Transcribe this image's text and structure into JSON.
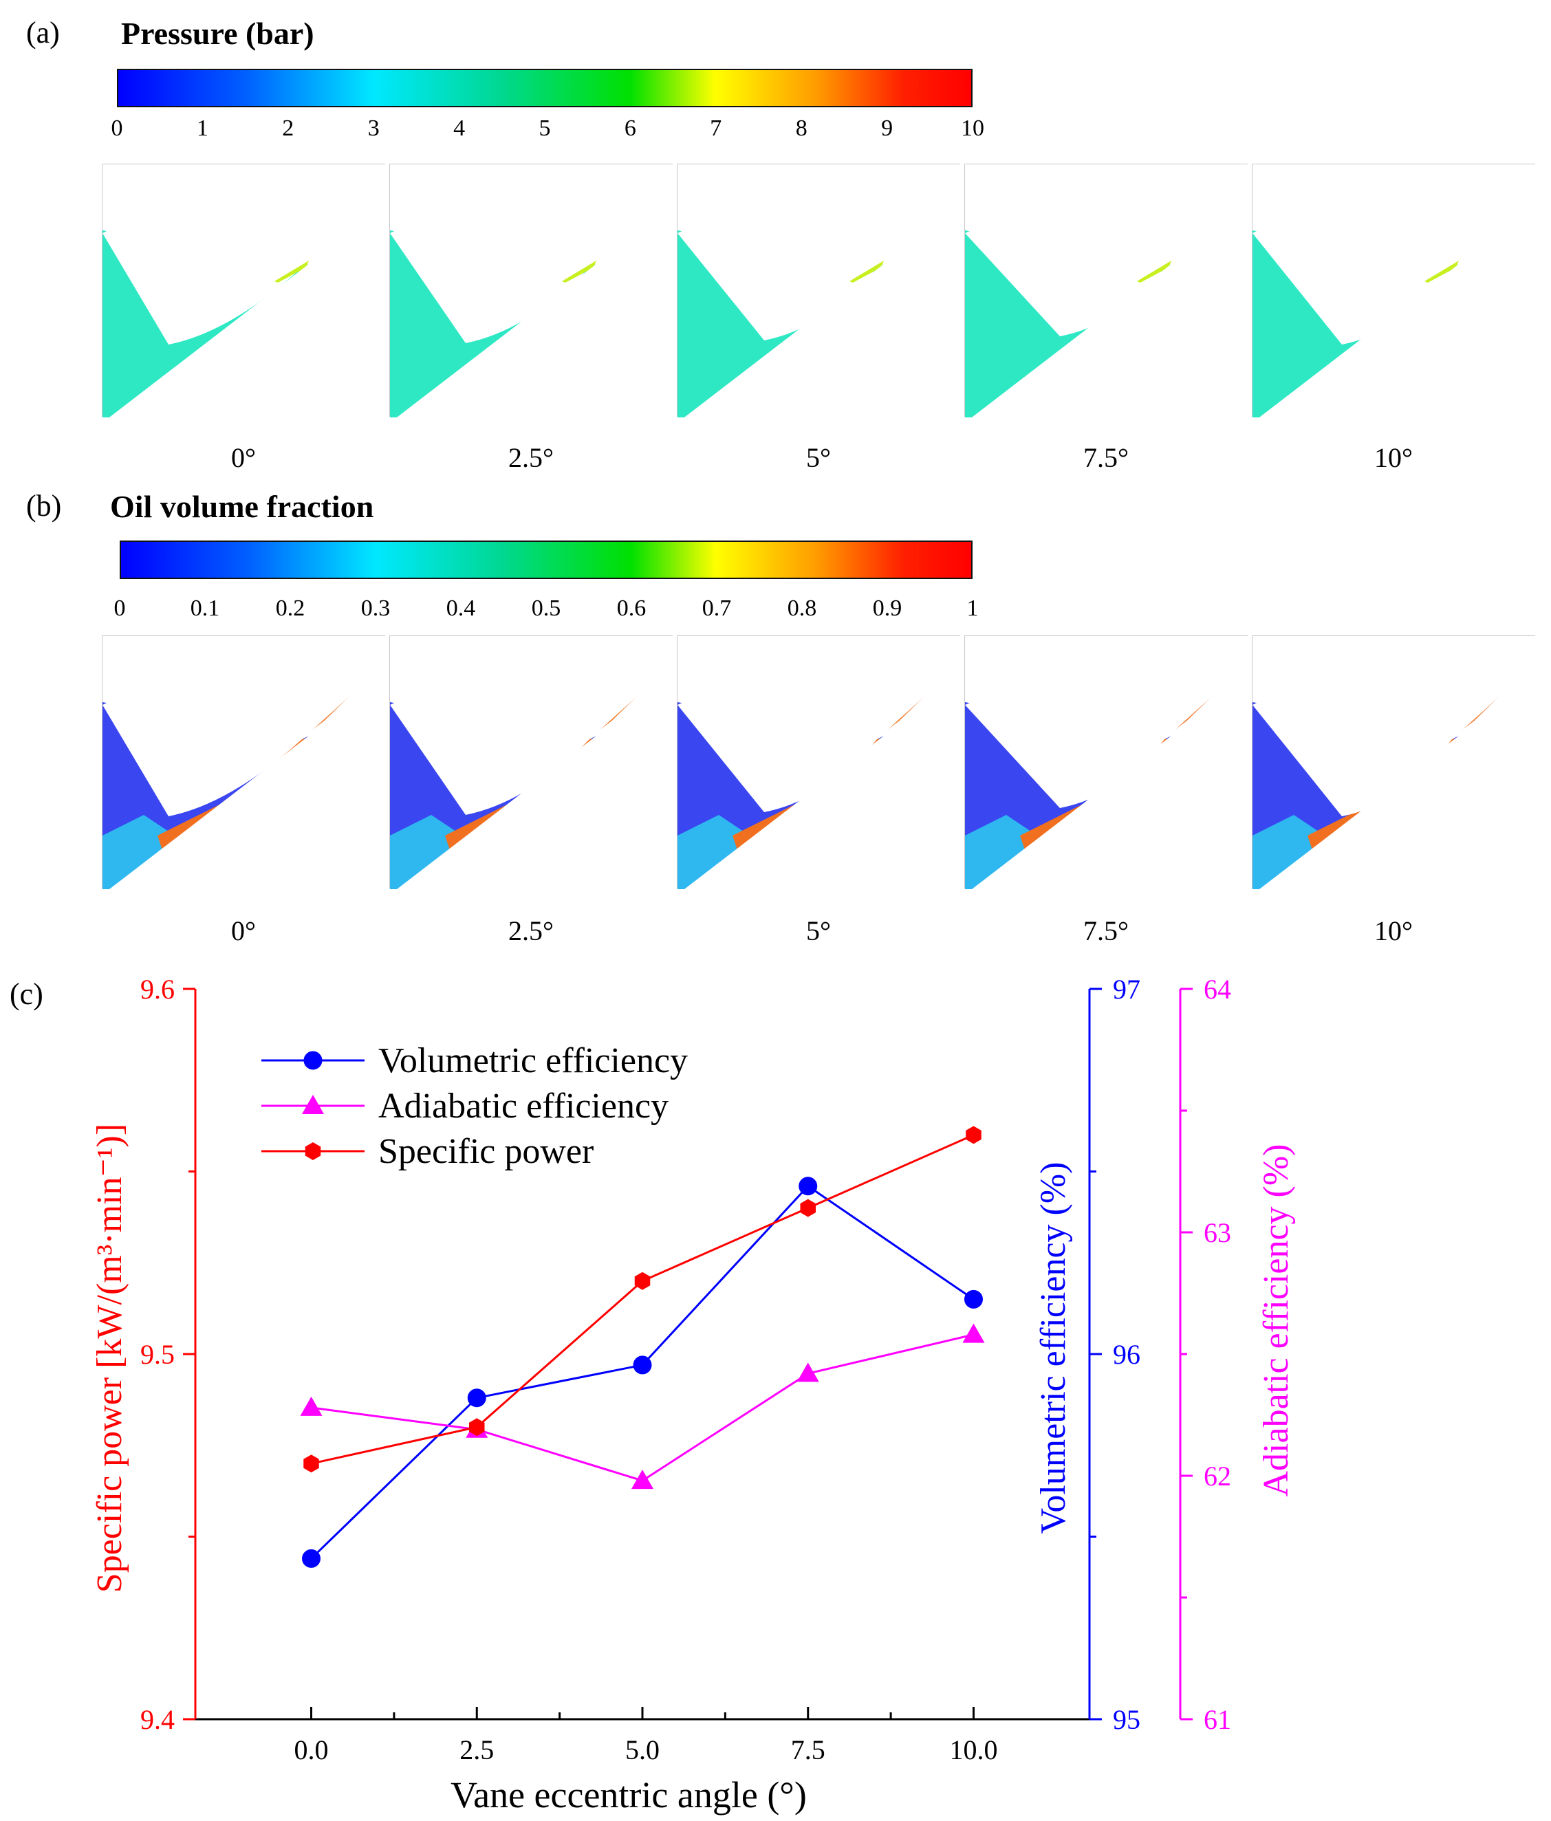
{
  "panel_a": {
    "label": "(a)",
    "title": "Pressure (bar)",
    "ticks": [
      "0",
      "1",
      "2",
      "3",
      "4",
      "5",
      "6",
      "7",
      "8",
      "9",
      "10"
    ],
    "angles": [
      "0°",
      "2.5°",
      "5°",
      "7.5°",
      "10°"
    ]
  },
  "panel_b": {
    "label": "(b)",
    "title": "Oil volume fraction",
    "ticks": [
      "0",
      "0.1",
      "0.2",
      "0.3",
      "0.4",
      "0.5",
      "0.6",
      "0.7",
      "0.8",
      "0.9",
      "1"
    ],
    "angles": [
      "0°",
      "2.5°",
      "5°",
      "7.5°",
      "10°"
    ]
  },
  "colors": {
    "pressure_low": "#2ee8c4",
    "pressure_high": "#ff665a",
    "volumetric": "#0000ff",
    "adiabatic": "#ff00ff",
    "specific": "#ff0000"
  },
  "chart_data": {
    "type": "line",
    "panel_label": "(c)",
    "xlabel": "Vane eccentric angle  (°)",
    "x": [
      0.0,
      2.5,
      5.0,
      7.5,
      10.0
    ],
    "x_tick_labels": [
      "0.0",
      "2.5",
      "5.0",
      "7.5",
      "10.0"
    ],
    "xlim": [
      -1.75,
      11.75
    ],
    "legend_position": "top-left",
    "axes": [
      {
        "name": "Specific power",
        "side": "left",
        "ylim": [
          9.4,
          9.6
        ],
        "ticks": [
          "9.4",
          "9.5",
          "9.6"
        ],
        "label": "Specific power [kW/(m³·min⁻¹)]"
      },
      {
        "name": "Volumetric efficiency",
        "side": "right",
        "ylim": [
          95,
          97
        ],
        "ticks": [
          "95",
          "96",
          "97"
        ],
        "label": "Volumetric efficiency (%)"
      },
      {
        "name": "Adiabatic efficiency",
        "side": "right-offset",
        "ylim": [
          61,
          64
        ],
        "ticks": [
          "61",
          "62",
          "63",
          "64"
        ],
        "label": "Adiabatic efficiency (%)"
      }
    ],
    "series": [
      {
        "name": "Volumetric efficiency",
        "axis": 1,
        "marker": "circle",
        "values": [
          95.44,
          95.88,
          95.97,
          96.46,
          96.15
        ]
      },
      {
        "name": "Adiabatic efficiency",
        "axis": 2,
        "marker": "triangle",
        "values": [
          62.28,
          62.19,
          61.98,
          62.42,
          62.58
        ]
      },
      {
        "name": "Specific power",
        "axis": 0,
        "marker": "hexagon",
        "values": [
          9.47,
          9.48,
          9.52,
          9.54,
          9.56
        ]
      }
    ]
  }
}
